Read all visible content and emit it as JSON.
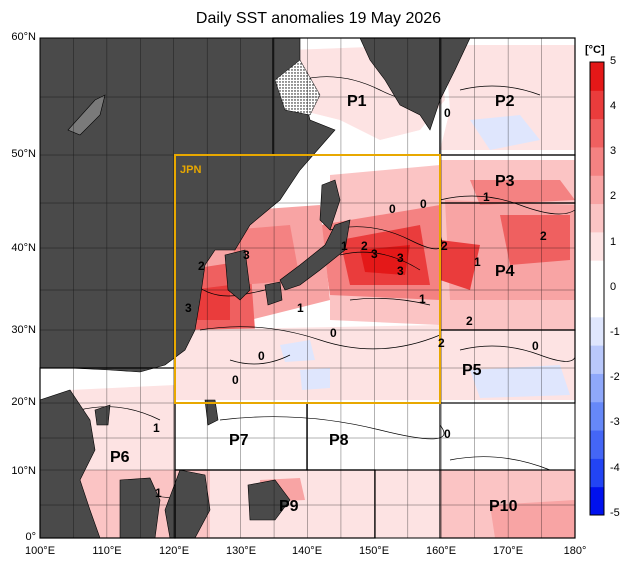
{
  "title": "Daily SST anomalies 19 May 2026",
  "colorbar": {
    "unit": "[°C]",
    "ticks": [
      "5",
      "4",
      "3",
      "2",
      "1",
      "0",
      "-1",
      "-2",
      "-3",
      "-4",
      "-5"
    ],
    "colors": [
      "#0011ee",
      "#2244f4",
      "#4466f6",
      "#6688f8",
      "#8fa8fa",
      "#b9c8fb",
      "#dfe6fd",
      "#ffffff",
      "#ffffff",
      "#fde3e3",
      "#fbc4c4",
      "#f8a4a4",
      "#f48282",
      "#ef6060",
      "#ea3c3c",
      "#e41818"
    ]
  },
  "axes": {
    "lon_labels": [
      "100°E",
      "110°E",
      "120°E",
      "130°E",
      "140°E",
      "150°E",
      "160°E",
      "170°E",
      "180°"
    ],
    "lat_labels": [
      "60°N",
      "50°N",
      "40°N",
      "30°N",
      "20°N",
      "10°N",
      "0°"
    ]
  },
  "regions": [
    {
      "id": "P1",
      "label": "P1"
    },
    {
      "id": "P2",
      "label": "P2"
    },
    {
      "id": "P3",
      "label": "P3"
    },
    {
      "id": "P4",
      "label": "P4"
    },
    {
      "id": "P5",
      "label": "P5"
    },
    {
      "id": "P6",
      "label": "P6"
    },
    {
      "id": "P7",
      "label": "P7"
    },
    {
      "id": "P8",
      "label": "P8"
    },
    {
      "id": "P9",
      "label": "P9"
    },
    {
      "id": "P10",
      "label": "P10"
    },
    {
      "id": "JPN",
      "label": "JPN"
    }
  ],
  "contour_labels": [
    "0",
    "1",
    "1",
    "1",
    "1",
    "2",
    "2",
    "2",
    "2",
    "2",
    "3",
    "3",
    "3",
    "3",
    "3",
    "1",
    "0",
    "0",
    "0",
    "0",
    "0",
    "1",
    "1",
    "0",
    "2",
    "0"
  ],
  "colors": {
    "land": "#4a4a4a",
    "jpn_box": "#e8a800",
    "region_box": "#000000"
  }
}
